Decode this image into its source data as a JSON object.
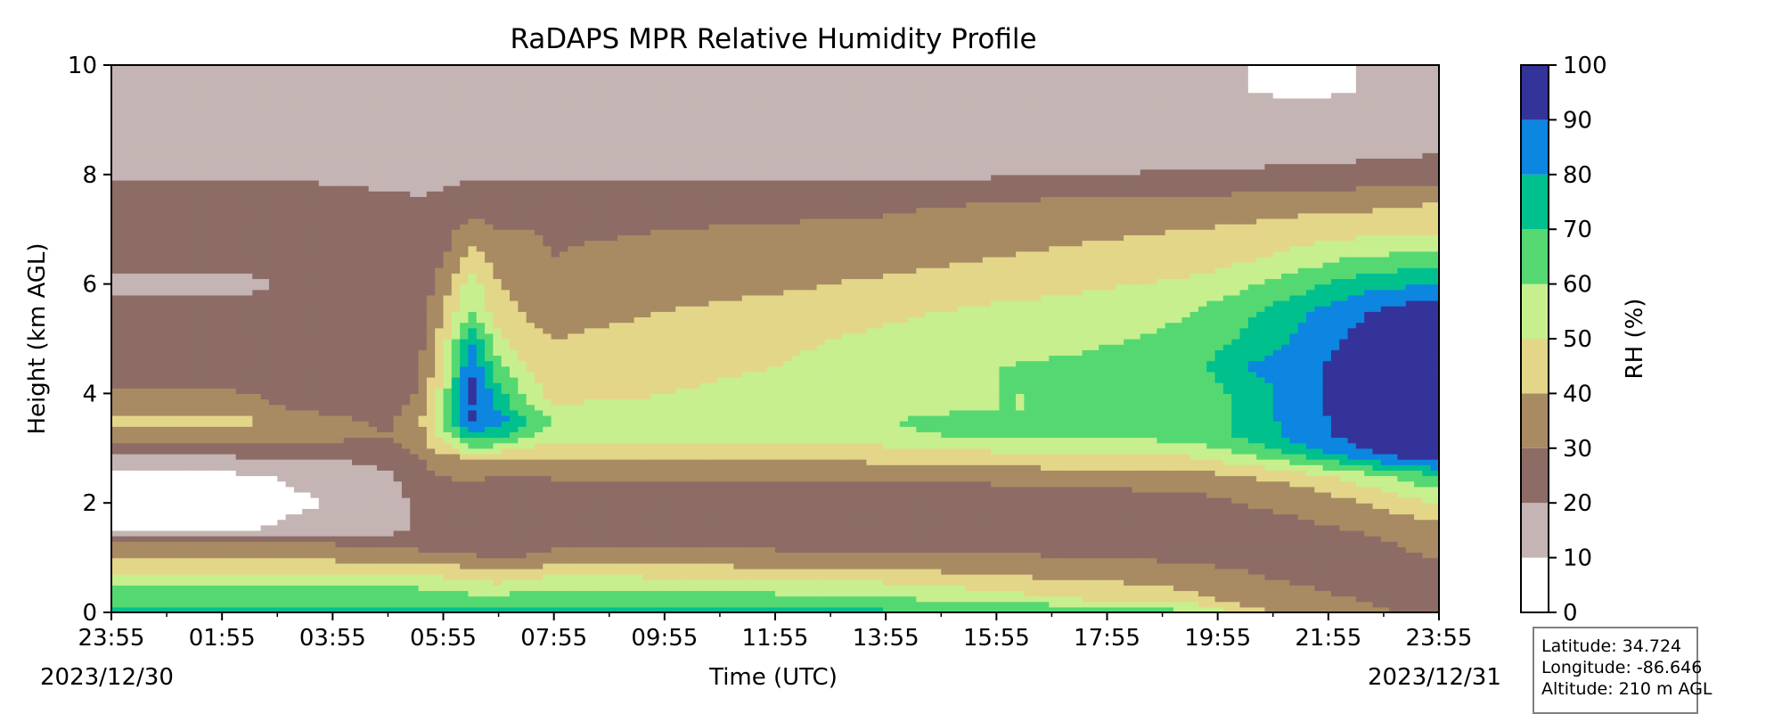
{
  "chart_data": {
    "type": "heatmap",
    "title": "RaDAPS MPR Relative Humidity Profile",
    "xlabel": "Time (UTC)",
    "ylabel": "Height (km AGL)",
    "x_ticks": [
      "23:55",
      "01:55",
      "03:55",
      "05:55",
      "07:55",
      "09:55",
      "11:55",
      "13:55",
      "15:55",
      "17:55",
      "19:55",
      "21:55",
      "23:55"
    ],
    "x_range_hours": [
      0,
      24
    ],
    "start_date": "2023/12/30",
    "end_date": "2023/12/31",
    "y_ticks": [
      "0",
      "2",
      "4",
      "6",
      "8",
      "10"
    ],
    "ylim": [
      0,
      10
    ],
    "colorbar": {
      "label": "RH (%)",
      "levels": [
        0,
        10,
        20,
        30,
        40,
        50,
        60,
        70,
        80,
        90,
        100
      ],
      "tick_labels": [
        "0",
        "10",
        "20",
        "30",
        "40",
        "50",
        "60",
        "70",
        "80",
        "90",
        "100"
      ],
      "colors": [
        "#ffffff",
        "#c4b4b3",
        "#8d6c66",
        "#a88b62",
        "#e3d689",
        "#c7ef8e",
        "#55d872",
        "#00c08e",
        "#0c86e0",
        "#33339a"
      ]
    },
    "grid_times_hours": [
      0,
      2,
      4,
      5,
      5.6,
      6,
      6.5,
      7,
      7.6,
      8,
      9,
      10,
      12,
      14,
      15,
      16,
      17.5,
      19.5,
      20.5,
      21.5,
      22.5,
      23.3,
      24
    ],
    "grid_heights_km": [
      0,
      0.25,
      0.5,
      0.75,
      1,
      1.25,
      1.5,
      2,
      2.5,
      2.8,
      3,
      3.25,
      3.5,
      3.75,
      4,
      4.5,
      5,
      5.5,
      6,
      6.5,
      7,
      7.5,
      8,
      8.5,
      9,
      9.5,
      10
    ],
    "rh_percent": [
      [
        72,
        72,
        72,
        72,
        72,
        72,
        72,
        72,
        72,
        72,
        72,
        72,
        72,
        72,
        72,
        72,
        72,
        62,
        45,
        35,
        32,
        30,
        28
      ],
      [
        68,
        68,
        68,
        68,
        68,
        66,
        64,
        64,
        66,
        66,
        66,
        66,
        64,
        62,
        58,
        55,
        50,
        44,
        36,
        32,
        30,
        28,
        27
      ],
      [
        58,
        58,
        58,
        58,
        58,
        56,
        54,
        52,
        56,
        58,
        58,
        56,
        54,
        52,
        50,
        46,
        44,
        38,
        32,
        30,
        28,
        27,
        27
      ],
      [
        48,
        48,
        48,
        48,
        48,
        46,
        44,
        40,
        44,
        46,
        46,
        45,
        44,
        42,
        40,
        38,
        35,
        32,
        30,
        28,
        27,
        27,
        26
      ],
      [
        38,
        38,
        38,
        37,
        36,
        34,
        32,
        28,
        32,
        34,
        34,
        34,
        33,
        32,
        32,
        31,
        30,
        29,
        28,
        27,
        27,
        28,
        30
      ],
      [
        30,
        30,
        30,
        28,
        26,
        25,
        25,
        22,
        26,
        28,
        28,
        28,
        28,
        28,
        28,
        28,
        28,
        28,
        28,
        28,
        28,
        30,
        35
      ],
      [
        9,
        9,
        12,
        17,
        22,
        24,
        24,
        22,
        24,
        25,
        25,
        25,
        25,
        25,
        25,
        25,
        25,
        26,
        28,
        28,
        30,
        32,
        36
      ],
      [
        8,
        8,
        10,
        15,
        22,
        24,
        24,
        22,
        23,
        23,
        21,
        21,
        22,
        23,
        21,
        21,
        23,
        26,
        30,
        32,
        38,
        45,
        50
      ],
      [
        8,
        8,
        12,
        18,
        28,
        30,
        32,
        30,
        30,
        31,
        31,
        31,
        31,
        32,
        33,
        34,
        35,
        36,
        40,
        45,
        55,
        62,
        70
      ],
      [
        18,
        18,
        20,
        24,
        30,
        34,
        38,
        38,
        38,
        40,
        40,
        40,
        40,
        42,
        44,
        45,
        46,
        48,
        55,
        65,
        78,
        90,
        92
      ],
      [
        25,
        25,
        26,
        27,
        34,
        45,
        60,
        55,
        48,
        45,
        46,
        47,
        48,
        48,
        50,
        52,
        52,
        55,
        65,
        78,
        90,
        95,
        95
      ],
      [
        35,
        35,
        33,
        30,
        38,
        55,
        75,
        75,
        60,
        55,
        56,
        56,
        57,
        58,
        60,
        62,
        62,
        65,
        72,
        85,
        93,
        96,
        96
      ],
      [
        45,
        45,
        33,
        28,
        40,
        60,
        92,
        85,
        70,
        60,
        58,
        58,
        58,
        60,
        62,
        64,
        62,
        66,
        72,
        86,
        94,
        97,
        97
      ],
      [
        35,
        35,
        26,
        25,
        36,
        58,
        90,
        78,
        60,
        52,
        52,
        52,
        54,
        56,
        58,
        60,
        60,
        64,
        72,
        86,
        95,
        97,
        97
      ],
      [
        32,
        32,
        24,
        23,
        32,
        55,
        93,
        75,
        55,
        46,
        48,
        50,
        54,
        56,
        58,
        60,
        60,
        64,
        72,
        86,
        95,
        97,
        97
      ],
      [
        20,
        20,
        20,
        22,
        30,
        50,
        90,
        62,
        48,
        42,
        44,
        46,
        50,
        54,
        58,
        60,
        62,
        66,
        80,
        88,
        94,
        97,
        97
      ],
      [
        22,
        22,
        22,
        25,
        28,
        45,
        80,
        52,
        42,
        40,
        42,
        44,
        48,
        52,
        55,
        56,
        58,
        62,
        72,
        82,
        92,
        97,
        97
      ],
      [
        22,
        22,
        22,
        24,
        26,
        40,
        60,
        45,
        38,
        36,
        38,
        40,
        44,
        48,
        50,
        52,
        54,
        60,
        68,
        78,
        88,
        95,
        97
      ],
      [
        18,
        18,
        22,
        22,
        24,
        35,
        55,
        40,
        34,
        33,
        34,
        35,
        38,
        42,
        44,
        46,
        48,
        52,
        58,
        66,
        75,
        78,
        82
      ],
      [
        22,
        22,
        22,
        22,
        23,
        28,
        45,
        35,
        32,
        30,
        32,
        33,
        34,
        36,
        38,
        40,
        42,
        44,
        48,
        54,
        60,
        62,
        64
      ],
      [
        28,
        28,
        24,
        22,
        22,
        26,
        34,
        30,
        30,
        29,
        29,
        30,
        31,
        32,
        34,
        36,
        38,
        40,
        42,
        44,
        46,
        46,
        48
      ],
      [
        26,
        26,
        24,
        22,
        21,
        23,
        26,
        26,
        25,
        25,
        25,
        26,
        27,
        28,
        29,
        30,
        32,
        32,
        34,
        36,
        37,
        38,
        40
      ],
      [
        19,
        19,
        18,
        17,
        17,
        17,
        18,
        18,
        18,
        18,
        18,
        18,
        18,
        18,
        18,
        19,
        20,
        21,
        22,
        22,
        23,
        24,
        25
      ],
      [
        16,
        16,
        16,
        16,
        15,
        15,
        15,
        15,
        15,
        15,
        15,
        15,
        15,
        15,
        15,
        15,
        15,
        15,
        15,
        16,
        17,
        18,
        18
      ],
      [
        16,
        16,
        16,
        15,
        15,
        15,
        15,
        15,
        15,
        15,
        15,
        15,
        15,
        15,
        15,
        15,
        15,
        15,
        15,
        14,
        15,
        15,
        15
      ],
      [
        14,
        14,
        14,
        14,
        13,
        13,
        13,
        13,
        13,
        12,
        12,
        12,
        12,
        12,
        12,
        12,
        12,
        11,
        10,
        9,
        10,
        10,
        10
      ],
      [
        11,
        11,
        11,
        11,
        10,
        10,
        10,
        10,
        10,
        10,
        10,
        10,
        10,
        10,
        10,
        10,
        10,
        10,
        10,
        10,
        10,
        10,
        10
      ]
    ]
  },
  "info_box": {
    "latitude": "Latitude: 34.724",
    "longitude": "Longitude: -86.646",
    "altitude": "Altitude: 210 m AGL"
  }
}
